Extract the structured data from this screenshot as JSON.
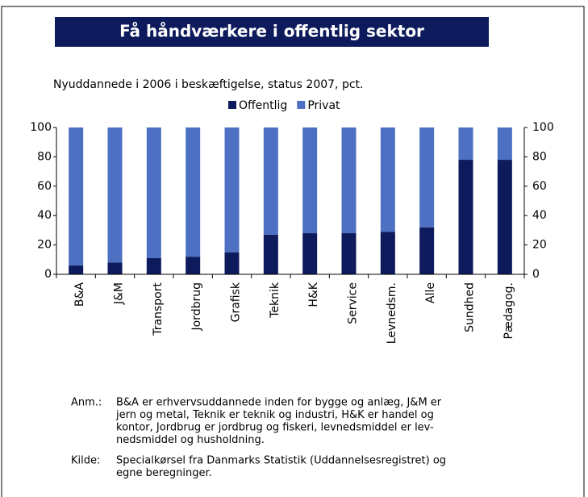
{
  "chart_data": {
    "type": "stacked_bar",
    "title": "Få håndværkere i offentlig sektor",
    "subtitle": "Nyuddannede i 2006 i beskæftigelse, status 2007, pct.",
    "categories": [
      "B&A",
      "J&M",
      "Transport",
      "Jordbrug",
      "Grafisk",
      "Teknik",
      "H&K",
      "Service",
      "Levnedsm.",
      "Alle",
      "Sundhed",
      "Pædagog."
    ],
    "series": [
      {
        "name": "Offentlig",
        "color": "#0d1a5c",
        "values": [
          6,
          8,
          11,
          12,
          15,
          27,
          28,
          28,
          29,
          32,
          78,
          78
        ]
      },
      {
        "name": "Privat",
        "color": "#4d70c2",
        "values": [
          94,
          92,
          89,
          88,
          85,
          73,
          72,
          72,
          71,
          68,
          22,
          22
        ]
      }
    ],
    "ylim": [
      0,
      100
    ],
    "yticks": [
      0,
      20,
      40,
      60,
      80,
      100
    ],
    "y2lim": [
      0,
      100
    ],
    "y2ticks": [
      0,
      20,
      40,
      60,
      80,
      100
    ],
    "legend": "top",
    "notes": [
      {
        "label": "Anm.:",
        "lines": [
          "B&A er erhvervsuddannede inden for bygge og anlæg, J&M er",
          "jern og metal, Teknik er teknik og industri, H&K er handel og",
          "kontor, Jordbrug er jordbrug og fiskeri, levnedsmiddel er lev-",
          "nedsmiddel og husholdning."
        ]
      },
      {
        "label": "Kilde:",
        "lines": [
          "Specialkørsel fra Danmarks Statistik (Uddannelsesregistret) og",
          "egne beregninger."
        ]
      }
    ]
  }
}
